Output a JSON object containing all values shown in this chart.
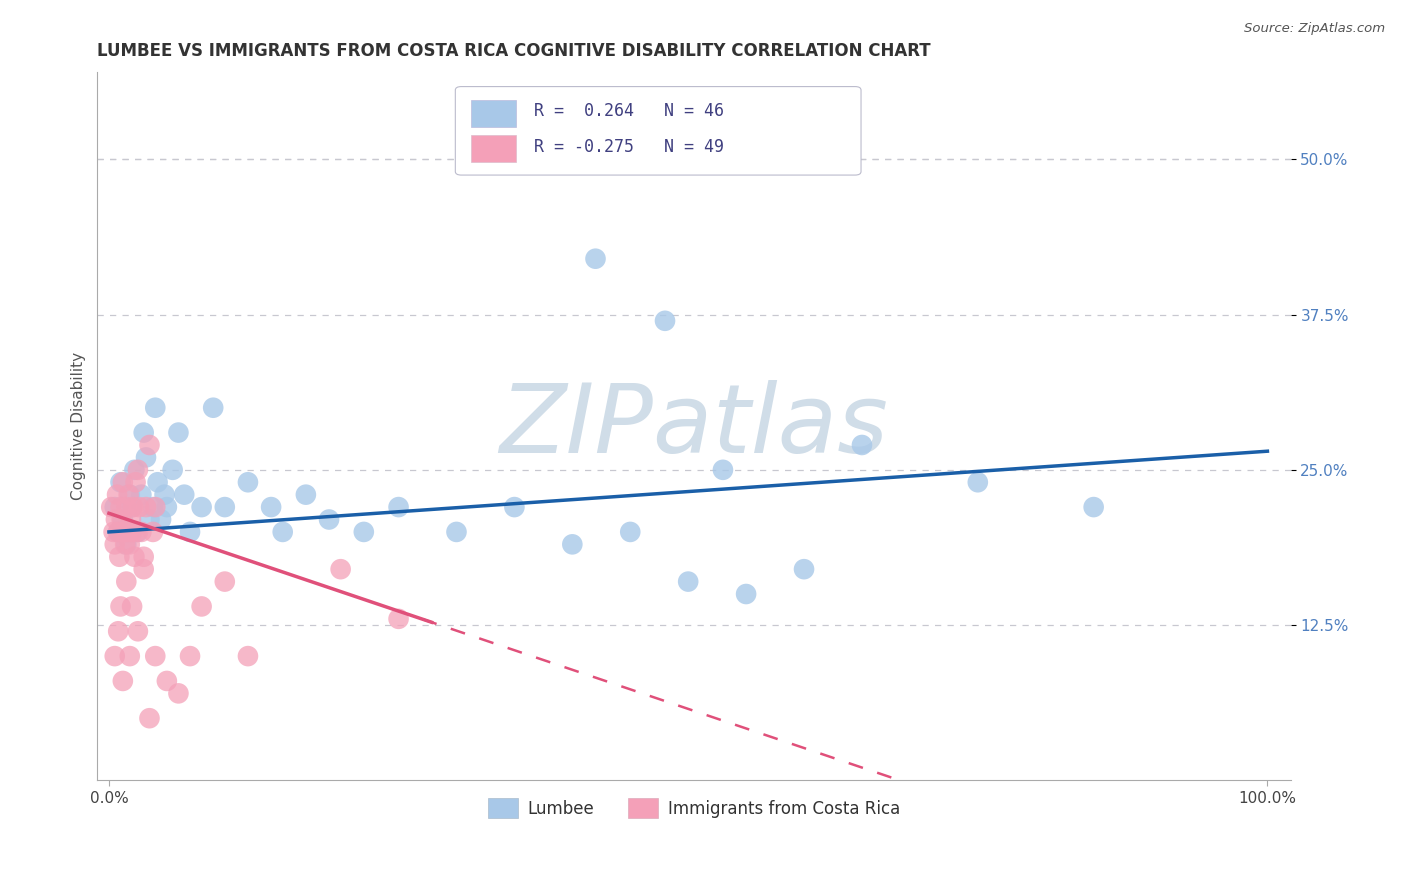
{
  "title": "LUMBEE VS IMMIGRANTS FROM COSTA RICA COGNITIVE DISABILITY CORRELATION CHART",
  "source": "Source: ZipAtlas.com",
  "ylabel": "Cognitive Disability",
  "xlim": [
    0.0,
    1.0
  ],
  "ylim": [
    0.0,
    0.55
  ],
  "lumbee_R": 0.264,
  "lumbee_N": 46,
  "costa_rica_R": -0.275,
  "costa_rica_N": 49,
  "lumbee_color": "#a8c8e8",
  "costa_rica_color": "#f4a0b8",
  "lumbee_line_color": "#1a5fa8",
  "costa_rica_line_color": "#e0507a",
  "watermark_color": "#d0dde8",
  "background_color": "#ffffff",
  "grid_color": "#c8c8d0",
  "ytick_color": "#5080c0",
  "title_color": "#333333",
  "legend_text_color": "#404080",
  "lumbee_x": [
    0.005,
    0.008,
    0.01,
    0.012,
    0.015,
    0.018,
    0.02,
    0.022,
    0.025,
    0.028,
    0.03,
    0.032,
    0.035,
    0.038,
    0.04,
    0.042,
    0.045,
    0.048,
    0.05,
    0.055,
    0.06,
    0.065,
    0.07,
    0.08,
    0.09,
    0.1,
    0.12,
    0.14,
    0.15,
    0.17,
    0.19,
    0.22,
    0.25,
    0.3,
    0.35,
    0.4,
    0.45,
    0.5,
    0.55,
    0.6,
    0.65,
    0.75,
    0.85,
    0.42,
    0.48,
    0.53
  ],
  "lumbee_y": [
    0.22,
    0.2,
    0.24,
    0.21,
    0.19,
    0.23,
    0.22,
    0.25,
    0.2,
    0.23,
    0.28,
    0.26,
    0.21,
    0.22,
    0.3,
    0.24,
    0.21,
    0.23,
    0.22,
    0.25,
    0.28,
    0.23,
    0.2,
    0.22,
    0.3,
    0.22,
    0.24,
    0.22,
    0.2,
    0.23,
    0.21,
    0.2,
    0.22,
    0.2,
    0.22,
    0.19,
    0.2,
    0.16,
    0.15,
    0.17,
    0.27,
    0.24,
    0.22,
    0.42,
    0.37,
    0.25
  ],
  "costa_rica_x": [
    0.002,
    0.004,
    0.005,
    0.006,
    0.007,
    0.008,
    0.009,
    0.01,
    0.011,
    0.012,
    0.013,
    0.014,
    0.015,
    0.016,
    0.017,
    0.018,
    0.019,
    0.02,
    0.021,
    0.022,
    0.023,
    0.024,
    0.025,
    0.026,
    0.028,
    0.03,
    0.032,
    0.035,
    0.038,
    0.04,
    0.005,
    0.008,
    0.01,
    0.012,
    0.015,
    0.018,
    0.02,
    0.025,
    0.03,
    0.035,
    0.04,
    0.05,
    0.06,
    0.07,
    0.08,
    0.1,
    0.12,
    0.2,
    0.25
  ],
  "costa_rica_y": [
    0.22,
    0.2,
    0.19,
    0.21,
    0.23,
    0.2,
    0.18,
    0.22,
    0.21,
    0.24,
    0.2,
    0.19,
    0.22,
    0.2,
    0.23,
    0.19,
    0.21,
    0.2,
    0.22,
    0.18,
    0.24,
    0.2,
    0.25,
    0.22,
    0.2,
    0.18,
    0.22,
    0.27,
    0.2,
    0.22,
    0.1,
    0.12,
    0.14,
    0.08,
    0.16,
    0.1,
    0.14,
    0.12,
    0.17,
    0.05,
    0.1,
    0.08,
    0.07,
    0.1,
    0.14,
    0.16,
    0.1,
    0.17,
    0.13
  ]
}
